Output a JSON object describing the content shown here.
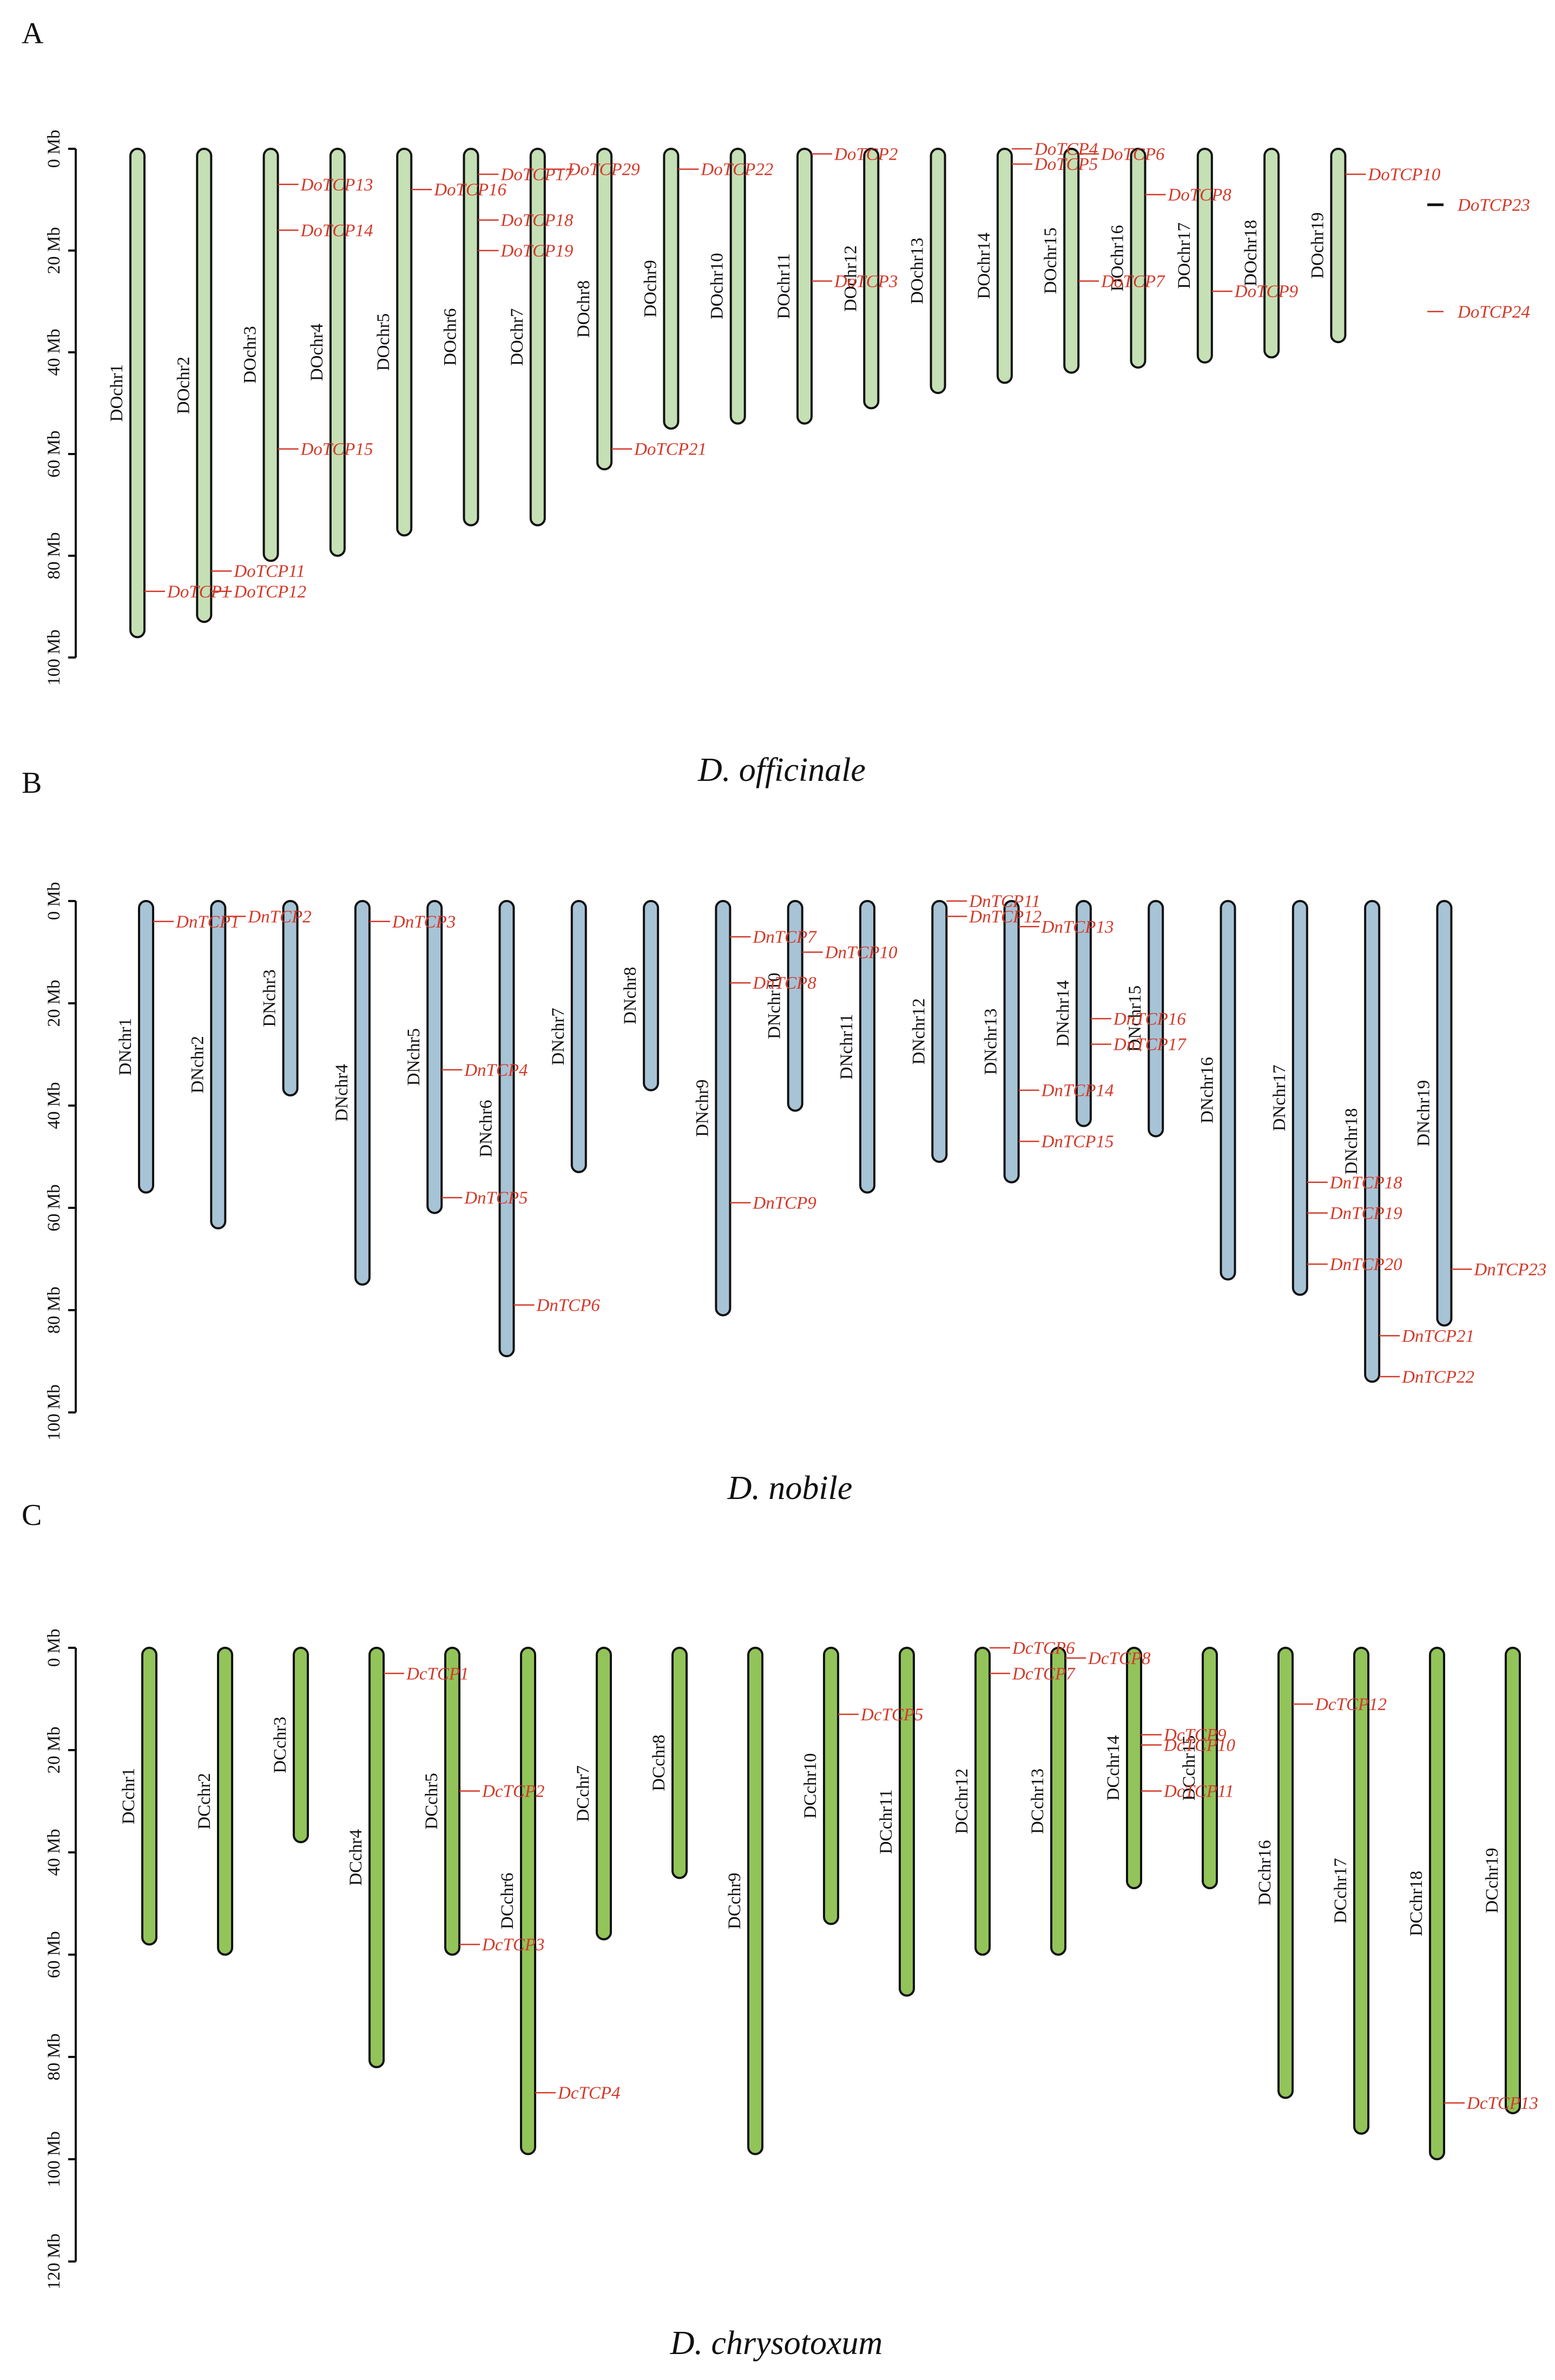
{
  "colors": {
    "gene": "#d33a2a",
    "chrom_A": "#c5e0b4",
    "chrom_B": "#a7c3d6",
    "chrom_C": "#92c45a",
    "outline": "#111111"
  },
  "panels": [
    {
      "id": "A",
      "letter": "A",
      "species": "D. officinale",
      "axis": {
        "max": 100,
        "step": 20,
        "ticks": [
          "0 Mb",
          "20 Mb",
          "40 Mb",
          "60 Mb",
          "80 Mb",
          "100 Mb"
        ]
      },
      "chromosomes": [
        {
          "name": "DOchr1",
          "length": 96
        },
        {
          "name": "DOchr2",
          "length": 93
        },
        {
          "name": "DOchr3",
          "length": 81
        },
        {
          "name": "DOchr4",
          "length": 80
        },
        {
          "name": "DOchr5",
          "length": 76
        },
        {
          "name": "DOchr6",
          "length": 74
        },
        {
          "name": "DOchr7",
          "length": 74
        },
        {
          "name": "DOchr8",
          "length": 63
        },
        {
          "name": "DOchr9",
          "length": 55
        },
        {
          "name": "DOchr10",
          "length": 54
        },
        {
          "name": "DOchr11",
          "length": 54
        },
        {
          "name": "DOchr12",
          "length": 51
        },
        {
          "name": "DOchr13",
          "length": 48
        },
        {
          "name": "DOchr14",
          "length": 46
        },
        {
          "name": "DOchr15",
          "length": 44
        },
        {
          "name": "DOchr16",
          "length": 43
        },
        {
          "name": "DOchr17",
          "length": 42
        },
        {
          "name": "DOchr18",
          "length": 41
        },
        {
          "name": "DOchr19",
          "length": 38
        }
      ],
      "genes": [
        {
          "name": "DoTCP1",
          "chr": 0,
          "pos": 87
        },
        {
          "name": "DoTCP11",
          "chr": 1,
          "pos": 83
        },
        {
          "name": "DoTCP12",
          "chr": 1,
          "pos": 87
        },
        {
          "name": "DoTCP13",
          "chr": 2,
          "pos": 7
        },
        {
          "name": "DoTCP14",
          "chr": 2,
          "pos": 16
        },
        {
          "name": "DoTCP15",
          "chr": 2,
          "pos": 59
        },
        {
          "name": "DoTCP16",
          "chr": 4,
          "pos": 8
        },
        {
          "name": "DoTCP17",
          "chr": 5,
          "pos": 5
        },
        {
          "name": "DoTCP18",
          "chr": 5,
          "pos": 14
        },
        {
          "name": "DoTCP19",
          "chr": 5,
          "pos": 20
        },
        {
          "name": "DoTCP29",
          "chr": 6,
          "pos": 4
        },
        {
          "name": "DoTCP21",
          "chr": 7,
          "pos": 59
        },
        {
          "name": "DoTCP22",
          "chr": 8,
          "pos": 4
        },
        {
          "name": "DoTCP2",
          "chr": 10,
          "pos": 1
        },
        {
          "name": "DoTCP3",
          "chr": 10,
          "pos": 26
        },
        {
          "name": "DoTCP4",
          "chr": 13,
          "pos": 0
        },
        {
          "name": "DoTCP5",
          "chr": 13,
          "pos": 3
        },
        {
          "name": "DoTCP6",
          "chr": 14,
          "pos": 1,
          "upright": true
        },
        {
          "name": "DoTCP7",
          "chr": 14,
          "pos": 26
        },
        {
          "name": "DoTCP8",
          "chr": 15,
          "pos": 9
        },
        {
          "name": "DoTCP9",
          "chr": 16,
          "pos": 28
        },
        {
          "name": "DoTCP10",
          "chr": 18,
          "pos": 5
        }
      ],
      "extras": [
        {
          "name": "DoTCP23",
          "pos": 11
        },
        {
          "name": "DoTCP24",
          "pos": 32
        }
      ]
    },
    {
      "id": "B",
      "letter": "B",
      "species": "D. nobile",
      "axis": {
        "max": 100,
        "step": 20,
        "ticks": [
          "0 Mb",
          "20 Mb",
          "40 Mb",
          "60 Mb",
          "80 Mb",
          "100 Mb"
        ]
      },
      "chromosomes": [
        {
          "name": "DNchr1",
          "length": 57
        },
        {
          "name": "DNchr2",
          "length": 64
        },
        {
          "name": "DNchr3",
          "length": 38
        },
        {
          "name": "DNchr4",
          "length": 75
        },
        {
          "name": "DNchr5",
          "length": 61
        },
        {
          "name": "DNchr6",
          "length": 89
        },
        {
          "name": "DNchr7",
          "length": 53
        },
        {
          "name": "DNchr8",
          "length": 37
        },
        {
          "name": "DNchr9",
          "length": 81
        },
        {
          "name": "DNchr10",
          "length": 41
        },
        {
          "name": "DNchr11",
          "length": 57
        },
        {
          "name": "DNchr12",
          "length": 51
        },
        {
          "name": "DNchr13",
          "length": 55
        },
        {
          "name": "DNchr14",
          "length": 44
        },
        {
          "name": "DNchr15",
          "length": 46
        },
        {
          "name": "DNchr16",
          "length": 74
        },
        {
          "name": "DNchr17",
          "length": 77
        },
        {
          "name": "DNchr18",
          "length": 94
        },
        {
          "name": "DNchr19",
          "length": 83
        }
      ],
      "genes": [
        {
          "name": "DnTCP1",
          "chr": 0,
          "pos": 4
        },
        {
          "name": "DnTCP2",
          "chr": 1,
          "pos": 3
        },
        {
          "name": "DnTCP3",
          "chr": 3,
          "pos": 4
        },
        {
          "name": "DnTCP4",
          "chr": 4,
          "pos": 33
        },
        {
          "name": "DnTCP5",
          "chr": 4,
          "pos": 58
        },
        {
          "name": "DnTCP6",
          "chr": 5,
          "pos": 79
        },
        {
          "name": "DnTCP7",
          "chr": 8,
          "pos": 7
        },
        {
          "name": "DnTCP8",
          "chr": 8,
          "pos": 16
        },
        {
          "name": "DnTCP9",
          "chr": 8,
          "pos": 59
        },
        {
          "name": "DnTCP10",
          "chr": 9,
          "pos": 10
        },
        {
          "name": "DnTCP11",
          "chr": 11,
          "pos": 0
        },
        {
          "name": "DnTCP12",
          "chr": 11,
          "pos": 3
        },
        {
          "name": "DnTCP13",
          "chr": 12,
          "pos": 5
        },
        {
          "name": "DnTCP14",
          "chr": 12,
          "pos": 37
        },
        {
          "name": "DnTCP15",
          "chr": 12,
          "pos": 47
        },
        {
          "name": "DnTCP16",
          "chr": 13,
          "pos": 23
        },
        {
          "name": "DnTCP17",
          "chr": 13,
          "pos": 28
        },
        {
          "name": "DnTCP18",
          "chr": 16,
          "pos": 55
        },
        {
          "name": "DnTCP19",
          "chr": 16,
          "pos": 61
        },
        {
          "name": "DnTCP20",
          "chr": 16,
          "pos": 71
        },
        {
          "name": "DnTCP21",
          "chr": 17,
          "pos": 85
        },
        {
          "name": "DnTCP22",
          "chr": 17,
          "pos": 93
        },
        {
          "name": "DnTCP23",
          "chr": 18,
          "pos": 72
        }
      ]
    },
    {
      "id": "C",
      "letter": "C",
      "species": "D. chrysotoxum",
      "axis": {
        "max": 120,
        "step": 20,
        "ticks": [
          "0 Mb",
          "20 Mb",
          "40 Mb",
          "60 Mb",
          "80 Mb",
          "100 Mb",
          "120 Mb"
        ]
      },
      "chromosomes": [
        {
          "name": "DCchr1",
          "length": 58
        },
        {
          "name": "DCchr2",
          "length": 60
        },
        {
          "name": "DCchr3",
          "length": 38
        },
        {
          "name": "DCchr4",
          "length": 82
        },
        {
          "name": "DCchr5",
          "length": 60
        },
        {
          "name": "DCchr6",
          "length": 99
        },
        {
          "name": "DCchr7",
          "length": 57
        },
        {
          "name": "DCchr8",
          "length": 45
        },
        {
          "name": "DCchr9",
          "length": 99
        },
        {
          "name": "DCchr10",
          "length": 54
        },
        {
          "name": "DCchr11",
          "length": 68
        },
        {
          "name": "DCchr12",
          "length": 60
        },
        {
          "name": "DCchr13",
          "length": 60
        },
        {
          "name": "DCchr14",
          "length": 47
        },
        {
          "name": "DCchr15",
          "length": 47
        },
        {
          "name": "DCchr16",
          "length": 88
        },
        {
          "name": "DCchr17",
          "length": 95
        },
        {
          "name": "DCchr18",
          "length": 100
        },
        {
          "name": "DCchr19",
          "length": 91
        }
      ],
      "genes": [
        {
          "name": "DcTCP1",
          "chr": 3,
          "pos": 5
        },
        {
          "name": "DcTCP2",
          "chr": 4,
          "pos": 28
        },
        {
          "name": "DcTCP3",
          "chr": 4,
          "pos": 58
        },
        {
          "name": "DcTCP4",
          "chr": 5,
          "pos": 87
        },
        {
          "name": "DcTCP5",
          "chr": 9,
          "pos": 13
        },
        {
          "name": "DcTCP6",
          "chr": 11,
          "pos": 0
        },
        {
          "name": "DcTCP7",
          "chr": 11,
          "pos": 5
        },
        {
          "name": "DcTCP8",
          "chr": 12,
          "pos": 2
        },
        {
          "name": "DcTCP9",
          "chr": 13,
          "pos": 17
        },
        {
          "name": "DcTCP10",
          "chr": 13,
          "pos": 19
        },
        {
          "name": "DcTCP11",
          "chr": 13,
          "pos": 28
        },
        {
          "name": "DcTCP12",
          "chr": 15,
          "pos": 11
        },
        {
          "name": "DcTCP13",
          "chr": 17,
          "pos": 89
        }
      ]
    }
  ]
}
